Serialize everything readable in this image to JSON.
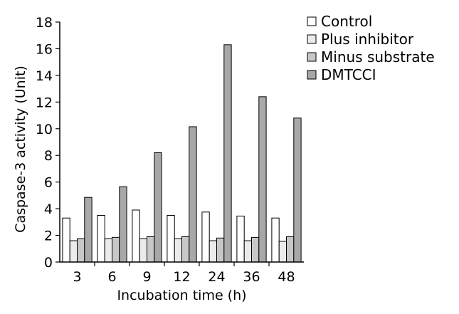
{
  "chart_data": {
    "type": "bar",
    "title": "",
    "xlabel": "Incubation time (h)",
    "ylabel": "Caspase-3 activity (Unit)",
    "categories": [
      "3",
      "6",
      "9",
      "12",
      "24",
      "36",
      "48"
    ],
    "ylim": [
      0,
      18
    ],
    "yticks": [
      "0",
      "2",
      "4",
      "6",
      "8",
      "10",
      "12",
      "14",
      "16",
      "18"
    ],
    "grid": false,
    "legend_position": "top-right",
    "series": [
      {
        "name": "Control",
        "color": "#ffffff",
        "values": [
          3.3,
          3.5,
          3.9,
          3.5,
          3.75,
          3.45,
          3.3
        ]
      },
      {
        "name": "Plus inhibitor",
        "color": "#ebebeb",
        "values": [
          1.6,
          1.75,
          1.75,
          1.75,
          1.6,
          1.6,
          1.55
        ]
      },
      {
        "name": "Minus substrate",
        "color": "#c8c8c8",
        "values": [
          1.75,
          1.85,
          1.9,
          1.9,
          1.8,
          1.85,
          1.9
        ]
      },
      {
        "name": "DMTCCI",
        "color": "#a8a8a8",
        "values": [
          4.85,
          5.65,
          8.2,
          10.15,
          16.3,
          12.4,
          10.8
        ]
      }
    ]
  }
}
